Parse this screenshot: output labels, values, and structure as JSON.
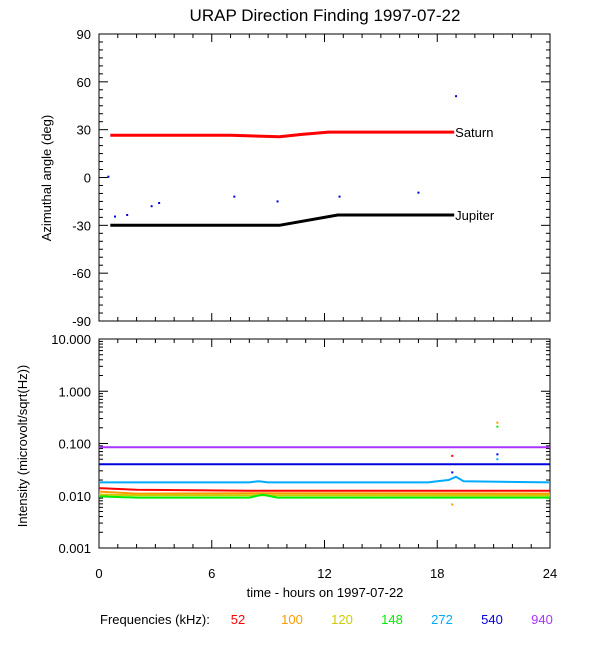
{
  "title": "URAP Direction Finding  1997-07-22",
  "xlabel": "time - hours on 1997-07-22",
  "freq_label": "Frequencies (kHz):",
  "freqs": [
    {
      "label": "52",
      "color": "#ff0000"
    },
    {
      "label": "100",
      "color": "#ff9900"
    },
    {
      "label": "120",
      "color": "#cccc00"
    },
    {
      "label": "148",
      "color": "#00ee00"
    },
    {
      "label": "272",
      "color": "#00aaff"
    },
    {
      "label": "540",
      "color": "#0000dd"
    },
    {
      "label": "940",
      "color": "#aa33ff"
    }
  ],
  "chart_data": [
    {
      "type": "line",
      "ylabel": "Azimuthal angle (deg)",
      "xlim": [
        0,
        24
      ],
      "ylim": [
        -90,
        90
      ],
      "xticks": [
        "0",
        "6",
        "12",
        "18",
        "24"
      ],
      "yticks": [
        "90",
        "60",
        "30",
        "0",
        "-30",
        "-60",
        "-90"
      ],
      "series": [
        {
          "name": "Saturn",
          "color": "#ff0000",
          "x": [
            0.6,
            7.0,
            9.6,
            10.8,
            12.2,
            18.9
          ],
          "y": [
            26.5,
            26.5,
            25.5,
            27.0,
            28.5,
            28.5
          ]
        },
        {
          "name": "Jupiter",
          "color": "#000000",
          "x": [
            0.6,
            9.6,
            12.7,
            18.9
          ],
          "y": [
            -30,
            -30,
            -23.5,
            -23.5
          ]
        }
      ],
      "scatter_points": {
        "color": "#0000dd",
        "x": [
          0.5,
          0.85,
          1.5,
          2.8,
          3.2,
          7.2,
          9.5,
          12.8,
          17.0,
          19.0
        ],
        "y": [
          0.5,
          -24.5,
          -23.5,
          -18,
          -16,
          -12,
          -15,
          -12,
          -9.5,
          51
        ]
      }
    },
    {
      "type": "line",
      "ylabel": "Intensity (microvolt/sqrt(Hz))",
      "xlim": [
        0,
        24
      ],
      "ylim": [
        0.001,
        10
      ],
      "yscale": "log",
      "xticks": [
        "0",
        "6",
        "12",
        "18",
        "24"
      ],
      "yticks": [
        "10.000",
        "1.000",
        "0.100",
        "0.010",
        "0.001"
      ],
      "series": [
        {
          "color": "#aa33ff",
          "x": [
            0,
            24
          ],
          "y": [
            0.085,
            0.085
          ]
        },
        {
          "color": "#0000dd",
          "x": [
            0,
            24
          ],
          "y": [
            0.04,
            0.04
          ]
        },
        {
          "color": "#00aaff",
          "x": [
            0,
            8.0,
            8.5,
            9.0,
            17.5,
            18.0,
            18.6,
            19.0,
            19.4,
            24
          ],
          "y": [
            0.018,
            0.018,
            0.019,
            0.018,
            0.018,
            0.019,
            0.02,
            0.023,
            0.019,
            0.018
          ]
        },
        {
          "color": "#ff0000",
          "x": [
            0,
            2,
            8,
            24
          ],
          "y": [
            0.014,
            0.013,
            0.0125,
            0.0125
          ]
        },
        {
          "color": "#ff9900",
          "x": [
            0,
            2,
            8,
            24
          ],
          "y": [
            0.012,
            0.011,
            0.0112,
            0.011
          ]
        },
        {
          "color": "#cccc00",
          "x": [
            0,
            2,
            8,
            24
          ],
          "y": [
            0.0105,
            0.0102,
            0.0102,
            0.0101
          ]
        },
        {
          "color": "#00ee00",
          "x": [
            0,
            2,
            8,
            8.7,
            9.5,
            24
          ],
          "y": [
            0.0097,
            0.0092,
            0.0092,
            0.0105,
            0.0092,
            0.0092
          ]
        }
      ],
      "scatter_points": [
        {
          "color": "#ff9900",
          "x": 18.8,
          "y": 0.0068
        },
        {
          "color": "#ff9900",
          "x": 21.2,
          "y": 0.25
        },
        {
          "color": "#00ee00",
          "x": 21.2,
          "y": 0.21
        },
        {
          "color": "#0000dd",
          "x": 18.8,
          "y": 0.028
        },
        {
          "color": "#0000dd",
          "x": 21.2,
          "y": 0.062
        },
        {
          "color": "#00aaff",
          "x": 21.2,
          "y": 0.05
        },
        {
          "color": "#ff0000",
          "x": 18.8,
          "y": 0.058
        }
      ]
    }
  ]
}
